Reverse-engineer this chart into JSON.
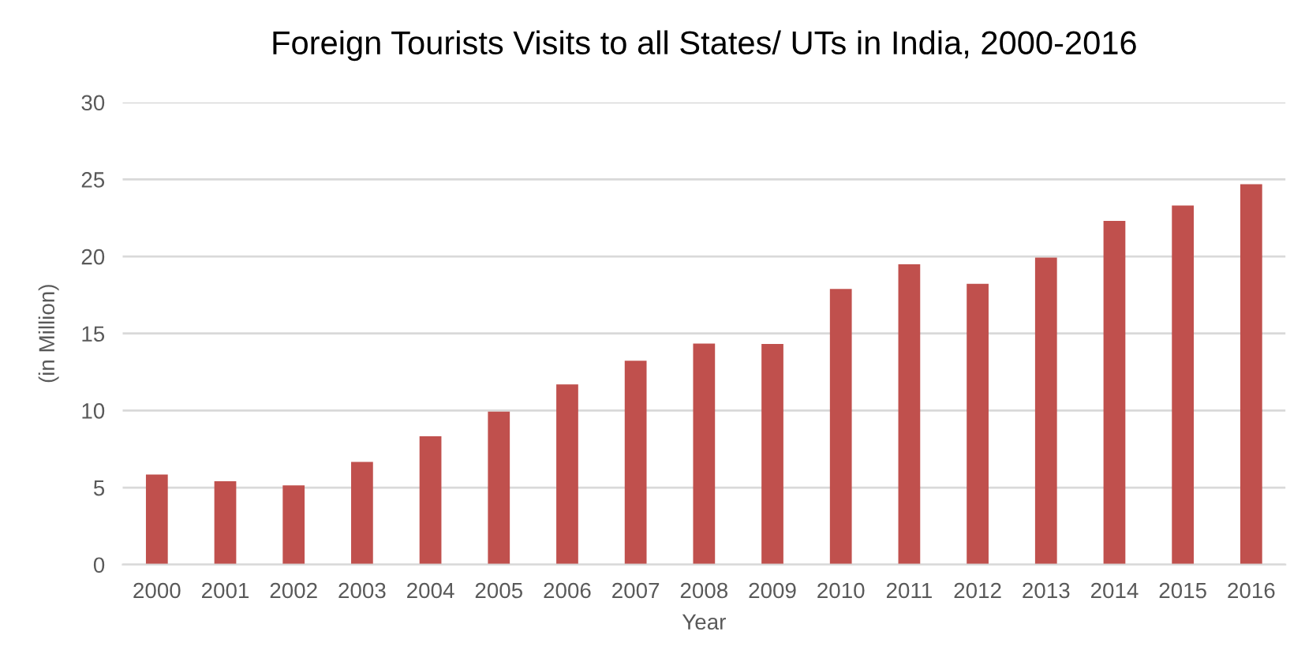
{
  "chart_data": {
    "type": "bar",
    "title": "Foreign Tourists Visits to all States/ UTs in India, 2000-2016",
    "xlabel": "Year",
    "ylabel": "(in Million)",
    "categories": [
      "2000",
      "2001",
      "2002",
      "2003",
      "2004",
      "2005",
      "2006",
      "2007",
      "2008",
      "2009",
      "2010",
      "2011",
      "2012",
      "2013",
      "2014",
      "2015",
      "2016"
    ],
    "values": [
      5.85,
      5.41,
      5.14,
      6.67,
      8.33,
      9.93,
      11.7,
      13.23,
      14.35,
      14.32,
      17.89,
      19.49,
      18.23,
      19.93,
      22.31,
      23.3,
      24.69
    ],
    "color": "#c0504d",
    "ylim": [
      0,
      30
    ],
    "yticks": [
      0,
      5,
      10,
      15,
      20,
      25,
      30
    ],
    "grid": "y",
    "legend": false
  }
}
